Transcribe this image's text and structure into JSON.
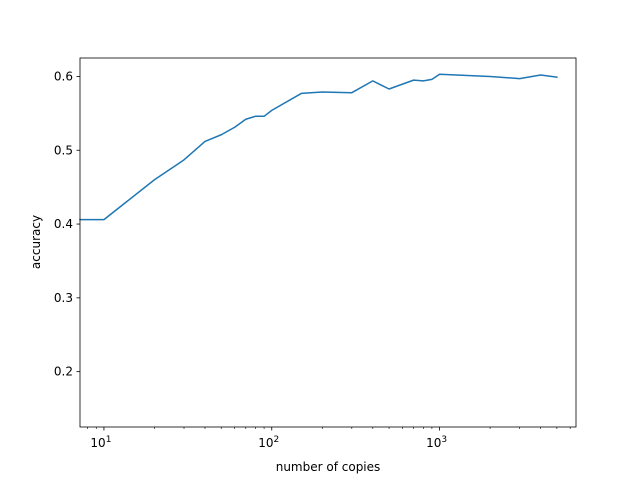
{
  "chart_data": {
    "type": "line",
    "xscale": "log",
    "xlabel": "number of copies",
    "ylabel": "accuracy",
    "xlim": [
      7.2,
      6500
    ],
    "ylim": [
      0.125,
      0.625
    ],
    "grid": false,
    "series_color": "#1f77b4",
    "x_ticks": [
      {
        "value": 10,
        "base": "10",
        "exp": "1"
      },
      {
        "value": 100,
        "base": "10",
        "exp": "2"
      },
      {
        "value": 1000,
        "base": "10",
        "exp": "3"
      }
    ],
    "y_ticks": [
      {
        "value": 0.2,
        "label": "0.2"
      },
      {
        "value": 0.3,
        "label": "0.3"
      },
      {
        "value": 0.4,
        "label": "0.4"
      },
      {
        "value": 0.5,
        "label": "0.5"
      },
      {
        "value": 0.6,
        "label": "0.6"
      }
    ],
    "series": [
      {
        "x": [
          7.2,
          10,
          20,
          30,
          40,
          50,
          60,
          70,
          80,
          90,
          100,
          150,
          200,
          300,
          400,
          500,
          700,
          800,
          900,
          1000,
          2000,
          3000,
          4000,
          5000
        ],
        "y": [
          0.406,
          0.406,
          0.46,
          0.487,
          0.512,
          0.521,
          0.531,
          0.542,
          0.546,
          0.546,
          0.554,
          0.577,
          0.579,
          0.578,
          0.594,
          0.583,
          0.595,
          0.594,
          0.596,
          0.603,
          0.6,
          0.597,
          0.602,
          0.599
        ]
      }
    ]
  }
}
